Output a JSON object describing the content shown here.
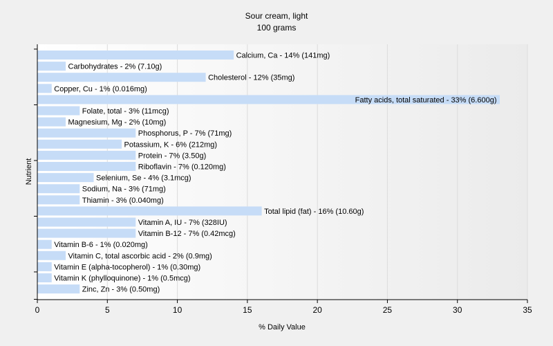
{
  "chart_data": {
    "type": "bar",
    "orientation": "horizontal",
    "title": "Sour cream, light",
    "subtitle": "100 grams",
    "xlabel": "% Daily Value",
    "ylabel": "Nutrient",
    "xlim": [
      0,
      35
    ],
    "xticks": [
      0,
      5,
      10,
      15,
      20,
      25,
      30,
      35
    ],
    "grid": true,
    "bar_color": "#c6dcf7",
    "categories": [
      "Calcium, Ca",
      "Carbohydrates",
      "Cholesterol",
      "Copper, Cu",
      "Fatty acids, total saturated",
      "Folate, total",
      "Magnesium, Mg",
      "Phosphorus, P",
      "Potassium, K",
      "Protein",
      "Riboflavin",
      "Selenium, Se",
      "Sodium, Na",
      "Thiamin",
      "Total lipid (fat)",
      "Vitamin A, IU",
      "Vitamin B-12",
      "Vitamin B-6",
      "Vitamin C, total ascorbic acid",
      "Vitamin E (alpha-tocopherol)",
      "Vitamin K (phylloquinone)",
      "Zinc, Zn"
    ],
    "values": [
      14,
      2,
      12,
      1,
      33,
      3,
      2,
      7,
      6,
      7,
      7,
      4,
      3,
      3,
      16,
      7,
      7,
      1,
      2,
      1,
      1,
      3
    ],
    "labels": [
      "Calcium, Ca - 14% (141mg)",
      "Carbohydrates - 2% (7.10g)",
      "Cholesterol - 12% (35mg)",
      "Copper, Cu - 1% (0.016mg)",
      "Fatty acids, total saturated - 33% (6.600g)",
      "Folate, total - 3% (11mcg)",
      "Magnesium, Mg - 2% (10mg)",
      "Phosphorus, P - 7% (71mg)",
      "Potassium, K - 6% (212mg)",
      "Protein - 7% (3.50g)",
      "Riboflavin - 7% (0.120mg)",
      "Selenium, Se - 4% (3.1mcg)",
      "Sodium, Na - 3% (71mg)",
      "Thiamin - 3% (0.040mg)",
      "Total lipid (fat) - 16% (10.60g)",
      "Vitamin A, IU - 7% (328IU)",
      "Vitamin B-12 - 7% (0.42mcg)",
      "Vitamin B-6 - 1% (0.020mg)",
      "Vitamin C, total ascorbic acid - 2% (0.9mg)",
      "Vitamin E (alpha-tocopherol) - 1% (0.30mg)",
      "Vitamin K (phylloquinone) - 1% (0.5mcg)",
      "Zinc, Zn - 3% (0.50mg)"
    ]
  }
}
